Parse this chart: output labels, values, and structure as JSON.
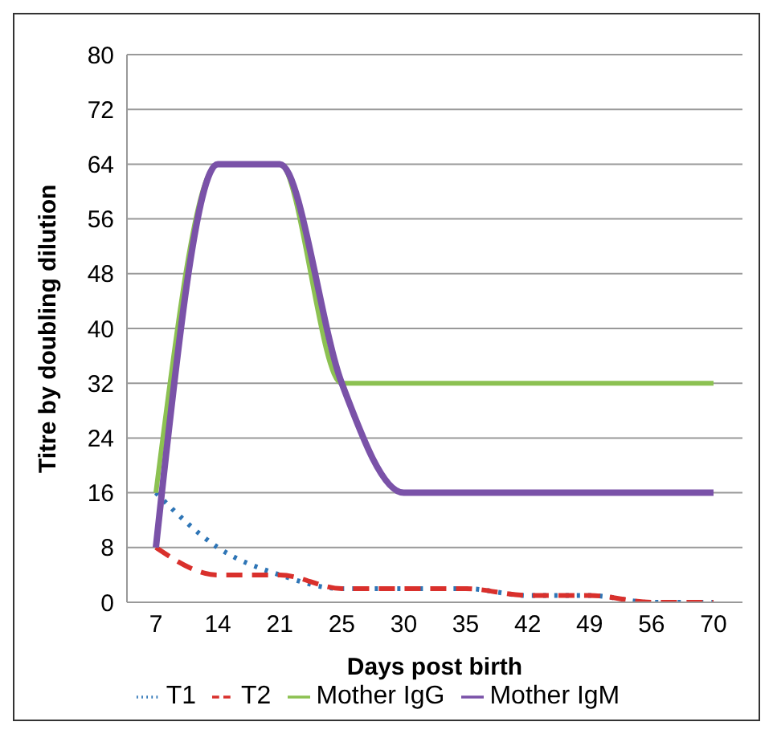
{
  "chart_data": {
    "type": "line",
    "xlabel": "Days post birth",
    "ylabel": "Titre by doubling dilution",
    "categories": [
      "7",
      "14",
      "21",
      "25",
      "30",
      "35",
      "42",
      "49",
      "56",
      "70"
    ],
    "series": [
      {
        "name": "T1",
        "color": "#2e75b6",
        "line_style": "dotted",
        "values": [
          16,
          8,
          4,
          2,
          2,
          2,
          1,
          1,
          0,
          0
        ]
      },
      {
        "name": "T2",
        "color": "#d9302c",
        "line_style": "dashed",
        "values": [
          8,
          4,
          4,
          2,
          2,
          2,
          1,
          1,
          0,
          0
        ]
      },
      {
        "name": "Mother IgG",
        "color": "#8cc152",
        "line_style": "solid",
        "values": [
          16,
          64,
          64,
          32,
          32,
          32,
          32,
          32,
          32,
          32
        ]
      },
      {
        "name": "Mother IgM",
        "color": "#7a52a8",
        "line_style": "solid",
        "values": [
          8,
          64,
          64,
          32,
          16,
          16,
          16,
          16,
          16,
          16
        ]
      }
    ],
    "ylim": [
      0,
      80
    ],
    "yticks": [
      0,
      8,
      16,
      24,
      32,
      40,
      48,
      56,
      64,
      72,
      80
    ],
    "grid": "y",
    "legend": "bottom",
    "marker": "none"
  }
}
